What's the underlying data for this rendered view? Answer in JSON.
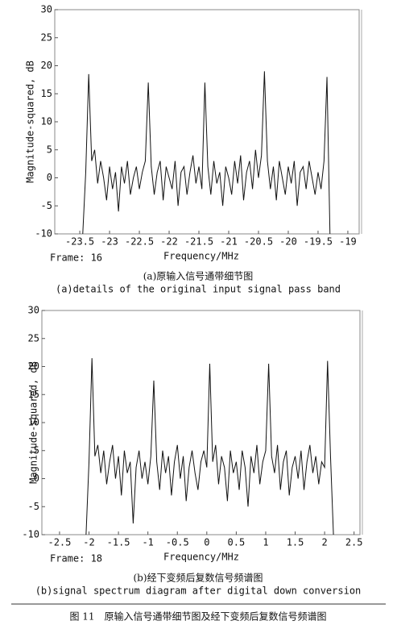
{
  "chart_data": [
    {
      "type": "line",
      "color": "#111111",
      "x_label": "Frequency/MHz",
      "y_label": "Magnitude-squared, dB",
      "frame_label": "Frame: 16",
      "caption_zh": "(a)原输入信号通带细节图",
      "caption_en": "(a)details of the original input signal pass band",
      "xlim": [
        -23.92,
        -18.81
      ],
      "ylim": [
        -10,
        30
      ],
      "xticks": [
        -23.5,
        -23,
        -22.5,
        -22,
        -21.5,
        -21,
        -20.5,
        -20,
        -19.5,
        -19
      ],
      "yticks": [
        -10,
        -5,
        0,
        5,
        10,
        15,
        20,
        25,
        30
      ],
      "x": [
        -23.45,
        -23.4,
        -23.35,
        -23.3,
        -23.25,
        -23.2,
        -23.15,
        -23.1,
        -23.05,
        -23,
        -22.95,
        -22.9,
        -22.85,
        -22.8,
        -22.75,
        -22.7,
        -22.65,
        -22.6,
        -22.55,
        -22.5,
        -22.45,
        -22.4,
        -22.35,
        -22.3,
        -22.25,
        -22.2,
        -22.15,
        -22.1,
        -22.05,
        -22,
        -21.95,
        -21.9,
        -21.85,
        -21.8,
        -21.75,
        -21.7,
        -21.65,
        -21.6,
        -21.55,
        -21.5,
        -21.45,
        -21.4,
        -21.35,
        -21.3,
        -21.25,
        -21.2,
        -21.15,
        -21.1,
        -21.05,
        -21,
        -20.95,
        -20.9,
        -20.85,
        -20.8,
        -20.75,
        -20.7,
        -20.65,
        -20.6,
        -20.55,
        -20.5,
        -20.45,
        -20.4,
        -20.35,
        -20.3,
        -20.25,
        -20.2,
        -20.15,
        -20.1,
        -20.05,
        -20,
        -19.95,
        -19.9,
        -19.85,
        -19.8,
        -19.75,
        -19.7,
        -19.65,
        -19.6,
        -19.55,
        -19.5,
        -19.45,
        -19.4,
        -19.35,
        -19.3
      ],
      "values": [
        -10,
        1,
        18.5,
        3,
        5,
        -1,
        3,
        0,
        -4,
        2,
        -2,
        1,
        -6,
        2,
        -1,
        3,
        -3,
        0,
        2,
        -2,
        1,
        3,
        17,
        2,
        -3,
        1,
        3,
        -4,
        2,
        0,
        -2,
        3,
        -5,
        1,
        2,
        -3,
        1,
        4,
        -1,
        2,
        -2,
        17,
        2,
        -3,
        3,
        -1,
        1,
        -5,
        2,
        0,
        -3,
        3,
        -1,
        4,
        -4,
        1,
        3,
        -2,
        5,
        0,
        4,
        19,
        3,
        -2,
        2,
        -4,
        3,
        0,
        -3,
        2,
        -1,
        3,
        -5,
        1,
        2,
        -2,
        3,
        0,
        -3,
        1,
        -2,
        3,
        18,
        -10
      ]
    },
    {
      "type": "line",
      "color": "#111111",
      "x_label": "Frequency/MHz",
      "y_label": "Magnitude-squared, dB",
      "frame_label": "Frame: 18",
      "caption_zh": "(b)经下变频后复数信号频谱图",
      "caption_en": "(b)signal spectrum diagram after digital down conversion",
      "xlim": [
        -2.8,
        2.6
      ],
      "ylim": [
        -10,
        30
      ],
      "xticks": [
        -2.5,
        -2,
        -1.5,
        -1,
        -0.5,
        0,
        0.5,
        1,
        1.5,
        2,
        2.5
      ],
      "yticks": [
        -10,
        -5,
        0,
        5,
        10,
        15,
        20,
        25,
        30
      ],
      "x": [
        -2.05,
        -2,
        -1.95,
        -1.9,
        -1.85,
        -1.8,
        -1.75,
        -1.7,
        -1.65,
        -1.6,
        -1.55,
        -1.5,
        -1.45,
        -1.4,
        -1.35,
        -1.3,
        -1.25,
        -1.2,
        -1.15,
        -1.1,
        -1.05,
        -1,
        -0.95,
        -0.9,
        -0.85,
        -0.8,
        -0.75,
        -0.7,
        -0.65,
        -0.6,
        -0.55,
        -0.5,
        -0.45,
        -0.4,
        -0.35,
        -0.3,
        -0.25,
        -0.2,
        -0.15,
        -0.1,
        -0.05,
        0,
        0.05,
        0.1,
        0.15,
        0.2,
        0.25,
        0.3,
        0.35,
        0.4,
        0.45,
        0.5,
        0.55,
        0.6,
        0.65,
        0.7,
        0.75,
        0.8,
        0.85,
        0.9,
        0.95,
        1,
        1.05,
        1.1,
        1.15,
        1.2,
        1.25,
        1.3,
        1.35,
        1.4,
        1.45,
        1.5,
        1.55,
        1.6,
        1.65,
        1.7,
        1.75,
        1.8,
        1.85,
        1.9,
        1.95,
        2,
        2.05,
        2.1,
        2.15
      ],
      "values": [
        -10,
        3,
        21.5,
        4,
        6,
        1,
        5,
        -1,
        3,
        6,
        0,
        4,
        -3,
        5,
        1,
        3,
        -8,
        2,
        5,
        0,
        3,
        -1,
        4,
        17.5,
        3,
        -2,
        5,
        1,
        4,
        -3,
        3,
        6,
        0,
        4,
        -4,
        2,
        5,
        1,
        -2,
        3,
        5,
        2,
        20.5,
        3,
        6,
        -1,
        4,
        2,
        -4,
        5,
        1,
        3,
        -2,
        5,
        2,
        -5,
        4,
        1,
        6,
        -1,
        3,
        5,
        20.5,
        4,
        1,
        6,
        -2,
        3,
        5,
        -3,
        2,
        4,
        0,
        5,
        -2,
        3,
        6,
        1,
        4,
        -1,
        3,
        2,
        21,
        4,
        -10
      ]
    }
  ],
  "figure_caption": "图 11　原输入信号通带细节图及经下变频后复数信号频谱图"
}
